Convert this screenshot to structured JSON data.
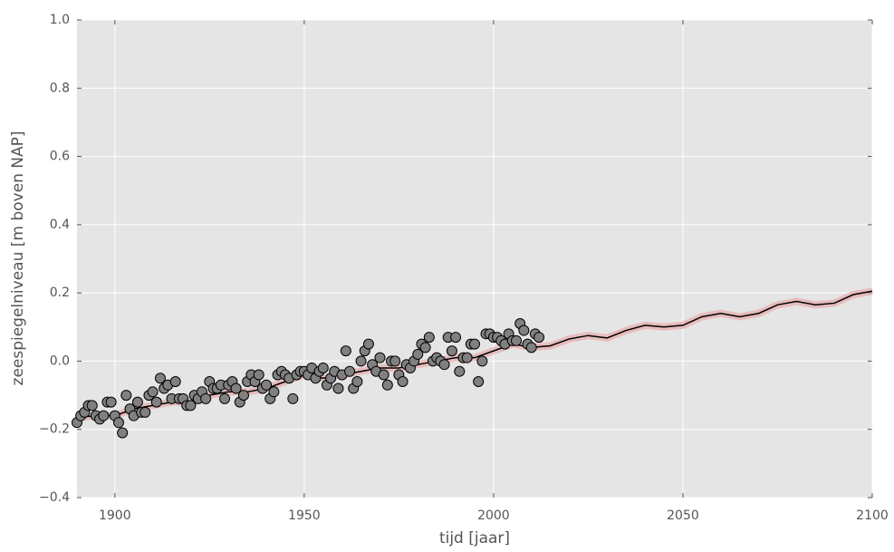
{
  "chart_data": {
    "type": "scatter-line",
    "xlabel": "tijd [jaar]",
    "ylabel": "zeespiegelniveau [m boven NAP]",
    "xlim": [
      1890,
      2100
    ],
    "ylim": [
      -0.4,
      1.0
    ],
    "xticks": [
      1900,
      1950,
      2000,
      2050,
      2100
    ],
    "yticks": [
      {
        "value": -0.4,
        "label": "−0.4"
      },
      {
        "value": -0.2,
        "label": "−0.2"
      },
      {
        "value": 0,
        "label": "0.0"
      },
      0.2,
      0.4,
      0.6,
      0.8,
      {
        "value": 1.0,
        "label": "1.0"
      }
    ],
    "grid": true,
    "points": {
      "color": "#808080",
      "x": [
        1890,
        1891,
        1892,
        1893,
        1894,
        1895,
        1896,
        1897,
        1898,
        1899,
        1900,
        1901,
        1902,
        1903,
        1904,
        1905,
        1906,
        1907,
        1908,
        1909,
        1910,
        1911,
        1912,
        1913,
        1914,
        1915,
        1916,
        1917,
        1918,
        1919,
        1920,
        1921,
        1922,
        1923,
        1924,
        1925,
        1926,
        1927,
        1928,
        1929,
        1930,
        1931,
        1932,
        1933,
        1934,
        1935,
        1936,
        1937,
        1938,
        1939,
        1940,
        1941,
        1942,
        1943,
        1944,
        1945,
        1946,
        1947,
        1948,
        1949,
        1950,
        1951,
        1952,
        1953,
        1954,
        1955,
        1956,
        1957,
        1958,
        1959,
        1960,
        1961,
        1962,
        1963,
        1964,
        1965,
        1966,
        1967,
        1968,
        1969,
        1970,
        1971,
        1972,
        1973,
        1974,
        1975,
        1976,
        1977,
        1978,
        1979,
        1980,
        1981,
        1982,
        1983,
        1984,
        1985,
        1986,
        1987,
        1988,
        1989,
        1990,
        1991,
        1992,
        1993,
        1994,
        1995,
        1996,
        1997,
        1998,
        1999,
        2000,
        2001,
        2002,
        2003,
        2004,
        2005,
        2006,
        2007,
        2008,
        2009,
        2010,
        2011,
        2012
      ],
      "values": [
        -0.18,
        -0.16,
        -0.15,
        -0.13,
        -0.13,
        -0.16,
        -0.17,
        -0.16,
        -0.12,
        -0.12,
        -0.16,
        -0.18,
        -0.21,
        -0.1,
        -0.14,
        -0.16,
        -0.12,
        -0.15,
        -0.15,
        -0.1,
        -0.09,
        -0.12,
        -0.05,
        -0.08,
        -0.07,
        -0.11,
        -0.06,
        -0.11,
        -0.11,
        -0.13,
        -0.13,
        -0.1,
        -0.11,
        -0.09,
        -0.11,
        -0.06,
        -0.08,
        -0.08,
        -0.07,
        -0.11,
        -0.07,
        -0.06,
        -0.08,
        -0.12,
        -0.1,
        -0.06,
        -0.04,
        -0.06,
        -0.04,
        -0.08,
        -0.07,
        -0.11,
        -0.09,
        -0.04,
        -0.03,
        -0.04,
        -0.05,
        -0.11,
        -0.04,
        -0.03,
        -0.03,
        -0.04,
        -0.02,
        -0.05,
        -0.03,
        -0.02,
        -0.07,
        -0.05,
        -0.03,
        -0.08,
        -0.04,
        0.03,
        -0.03,
        -0.08,
        -0.06,
        0.0,
        0.03,
        0.05,
        -0.01,
        -0.03,
        0.01,
        -0.04,
        -0.07,
        0.0,
        0.0,
        -0.04,
        -0.06,
        -0.01,
        -0.02,
        0.0,
        0.02,
        0.05,
        0.04,
        0.07,
        0.0,
        0.01,
        0.0,
        -0.01,
        0.07,
        0.03,
        0.07,
        -0.03,
        0.01,
        0.01,
        0.05,
        0.05,
        -0.06,
        0.0,
        0.08,
        0.08,
        0.07,
        0.07,
        0.06,
        0.05,
        0.08,
        0.06,
        0.06,
        0.11,
        0.09,
        0.05,
        0.04,
        0.08,
        0.07
      ]
    },
    "line": {
      "color": "#000000",
      "x": [
        1890,
        1895,
        1900,
        1905,
        1910,
        1915,
        1920,
        1925,
        1930,
        1935,
        1940,
        1945,
        1950,
        1955,
        1960,
        1965,
        1970,
        1975,
        1980,
        1985,
        1990,
        1995,
        2000,
        2005,
        2010,
        2015,
        2020,
        2025,
        2030,
        2035,
        2040,
        2045,
        2050,
        2055,
        2060,
        2065,
        2070,
        2075,
        2080,
        2085,
        2090,
        2095,
        2100
      ],
      "values": [
        -0.165,
        -0.16,
        -0.16,
        -0.14,
        -0.13,
        -0.12,
        -0.12,
        -0.1,
        -0.09,
        -0.09,
        -0.08,
        -0.06,
        -0.04,
        -0.05,
        -0.04,
        -0.03,
        -0.02,
        -0.02,
        -0.01,
        0.0,
        0.01,
        0.01,
        0.03,
        0.05,
        0.04,
        0.045,
        0.065,
        0.075,
        0.068,
        0.09,
        0.105,
        0.1,
        0.105,
        0.13,
        0.14,
        0.13,
        0.14,
        0.165,
        0.175,
        0.165,
        0.17,
        0.195,
        0.205
      ]
    }
  }
}
